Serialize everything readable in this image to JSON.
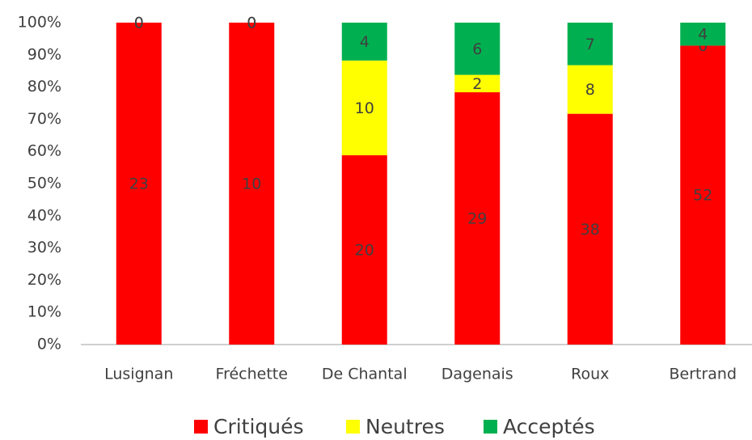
{
  "chart_data": {
    "type": "stacked_percent_bar",
    "categories": [
      "Lusignan",
      "Fréchette",
      "De Chantal",
      "Dagenais",
      "Roux",
      "Bertrand"
    ],
    "series": [
      {
        "name": "Critiqués",
        "color": "#ff0000",
        "values": [
          23,
          10,
          20,
          29,
          38,
          52
        ]
      },
      {
        "name": "Neutres",
        "color": "#ffff00",
        "values": [
          0,
          0,
          10,
          2,
          8,
          0
        ]
      },
      {
        "name": "Acceptés",
        "color": "#00b050",
        "values": [
          0,
          0,
          4,
          6,
          7,
          4
        ]
      }
    ],
    "ylim": [
      0,
      100
    ],
    "yticks": [
      {
        "value": 0,
        "label": "0%"
      },
      {
        "value": 10,
        "label": "10%"
      },
      {
        "value": 20,
        "label": "20%"
      },
      {
        "value": 30,
        "label": "30%"
      },
      {
        "value": 40,
        "label": "40%"
      },
      {
        "value": 50,
        "label": "50%"
      },
      {
        "value": 60,
        "label": "60%"
      },
      {
        "value": 70,
        "label": "70%"
      },
      {
        "value": 80,
        "label": "80%"
      },
      {
        "value": 90,
        "label": "90%"
      },
      {
        "value": 100,
        "label": "100%"
      }
    ],
    "grid": false,
    "legend": "bottom"
  }
}
